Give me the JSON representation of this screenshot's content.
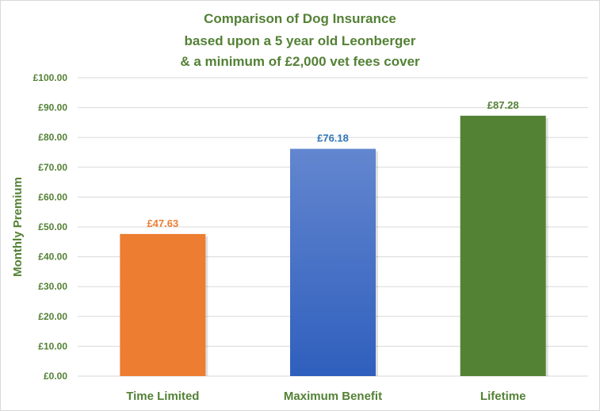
{
  "title_lines": [
    "Comparison  of Dog Insurance",
    "based upon a 5 year old Leonberger",
    "& a minimum  of £2,000 vet fees cover"
  ],
  "chart_data": {
    "type": "bar",
    "title": "Comparison of Dog Insurance based upon a 5 year old Leonberger & a minimum of £2,000 vet fees cover",
    "xlabel": "",
    "ylabel": "Monthly Premium",
    "ylim": [
      0,
      100
    ],
    "y_tick_values": [
      0,
      10,
      20,
      30,
      40,
      50,
      60,
      70,
      80,
      90,
      100
    ],
    "y_tick_labels": [
      "£0.00",
      "£10.00",
      "£20.00",
      "£30.00",
      "£40.00",
      "£50.00",
      "£60.00",
      "£70.00",
      "£80.00",
      "£90.00",
      "£100.00"
    ],
    "categories": [
      "Time Limited",
      "Maximum Benefit",
      "Lifetime"
    ],
    "values": [
      47.63,
      76.18,
      87.28
    ],
    "data_labels": [
      "£47.63",
      "£76.18",
      "£87.28"
    ],
    "bar_colors": [
      "#ed7d31",
      "#4472c4",
      "#548235"
    ],
    "label_colors": [
      "#ed7d31",
      "#2e75b6",
      "#548235"
    ],
    "grid": true,
    "legend": "none",
    "text_color": "#538135",
    "gridline_color": "#d9d9d9"
  }
}
